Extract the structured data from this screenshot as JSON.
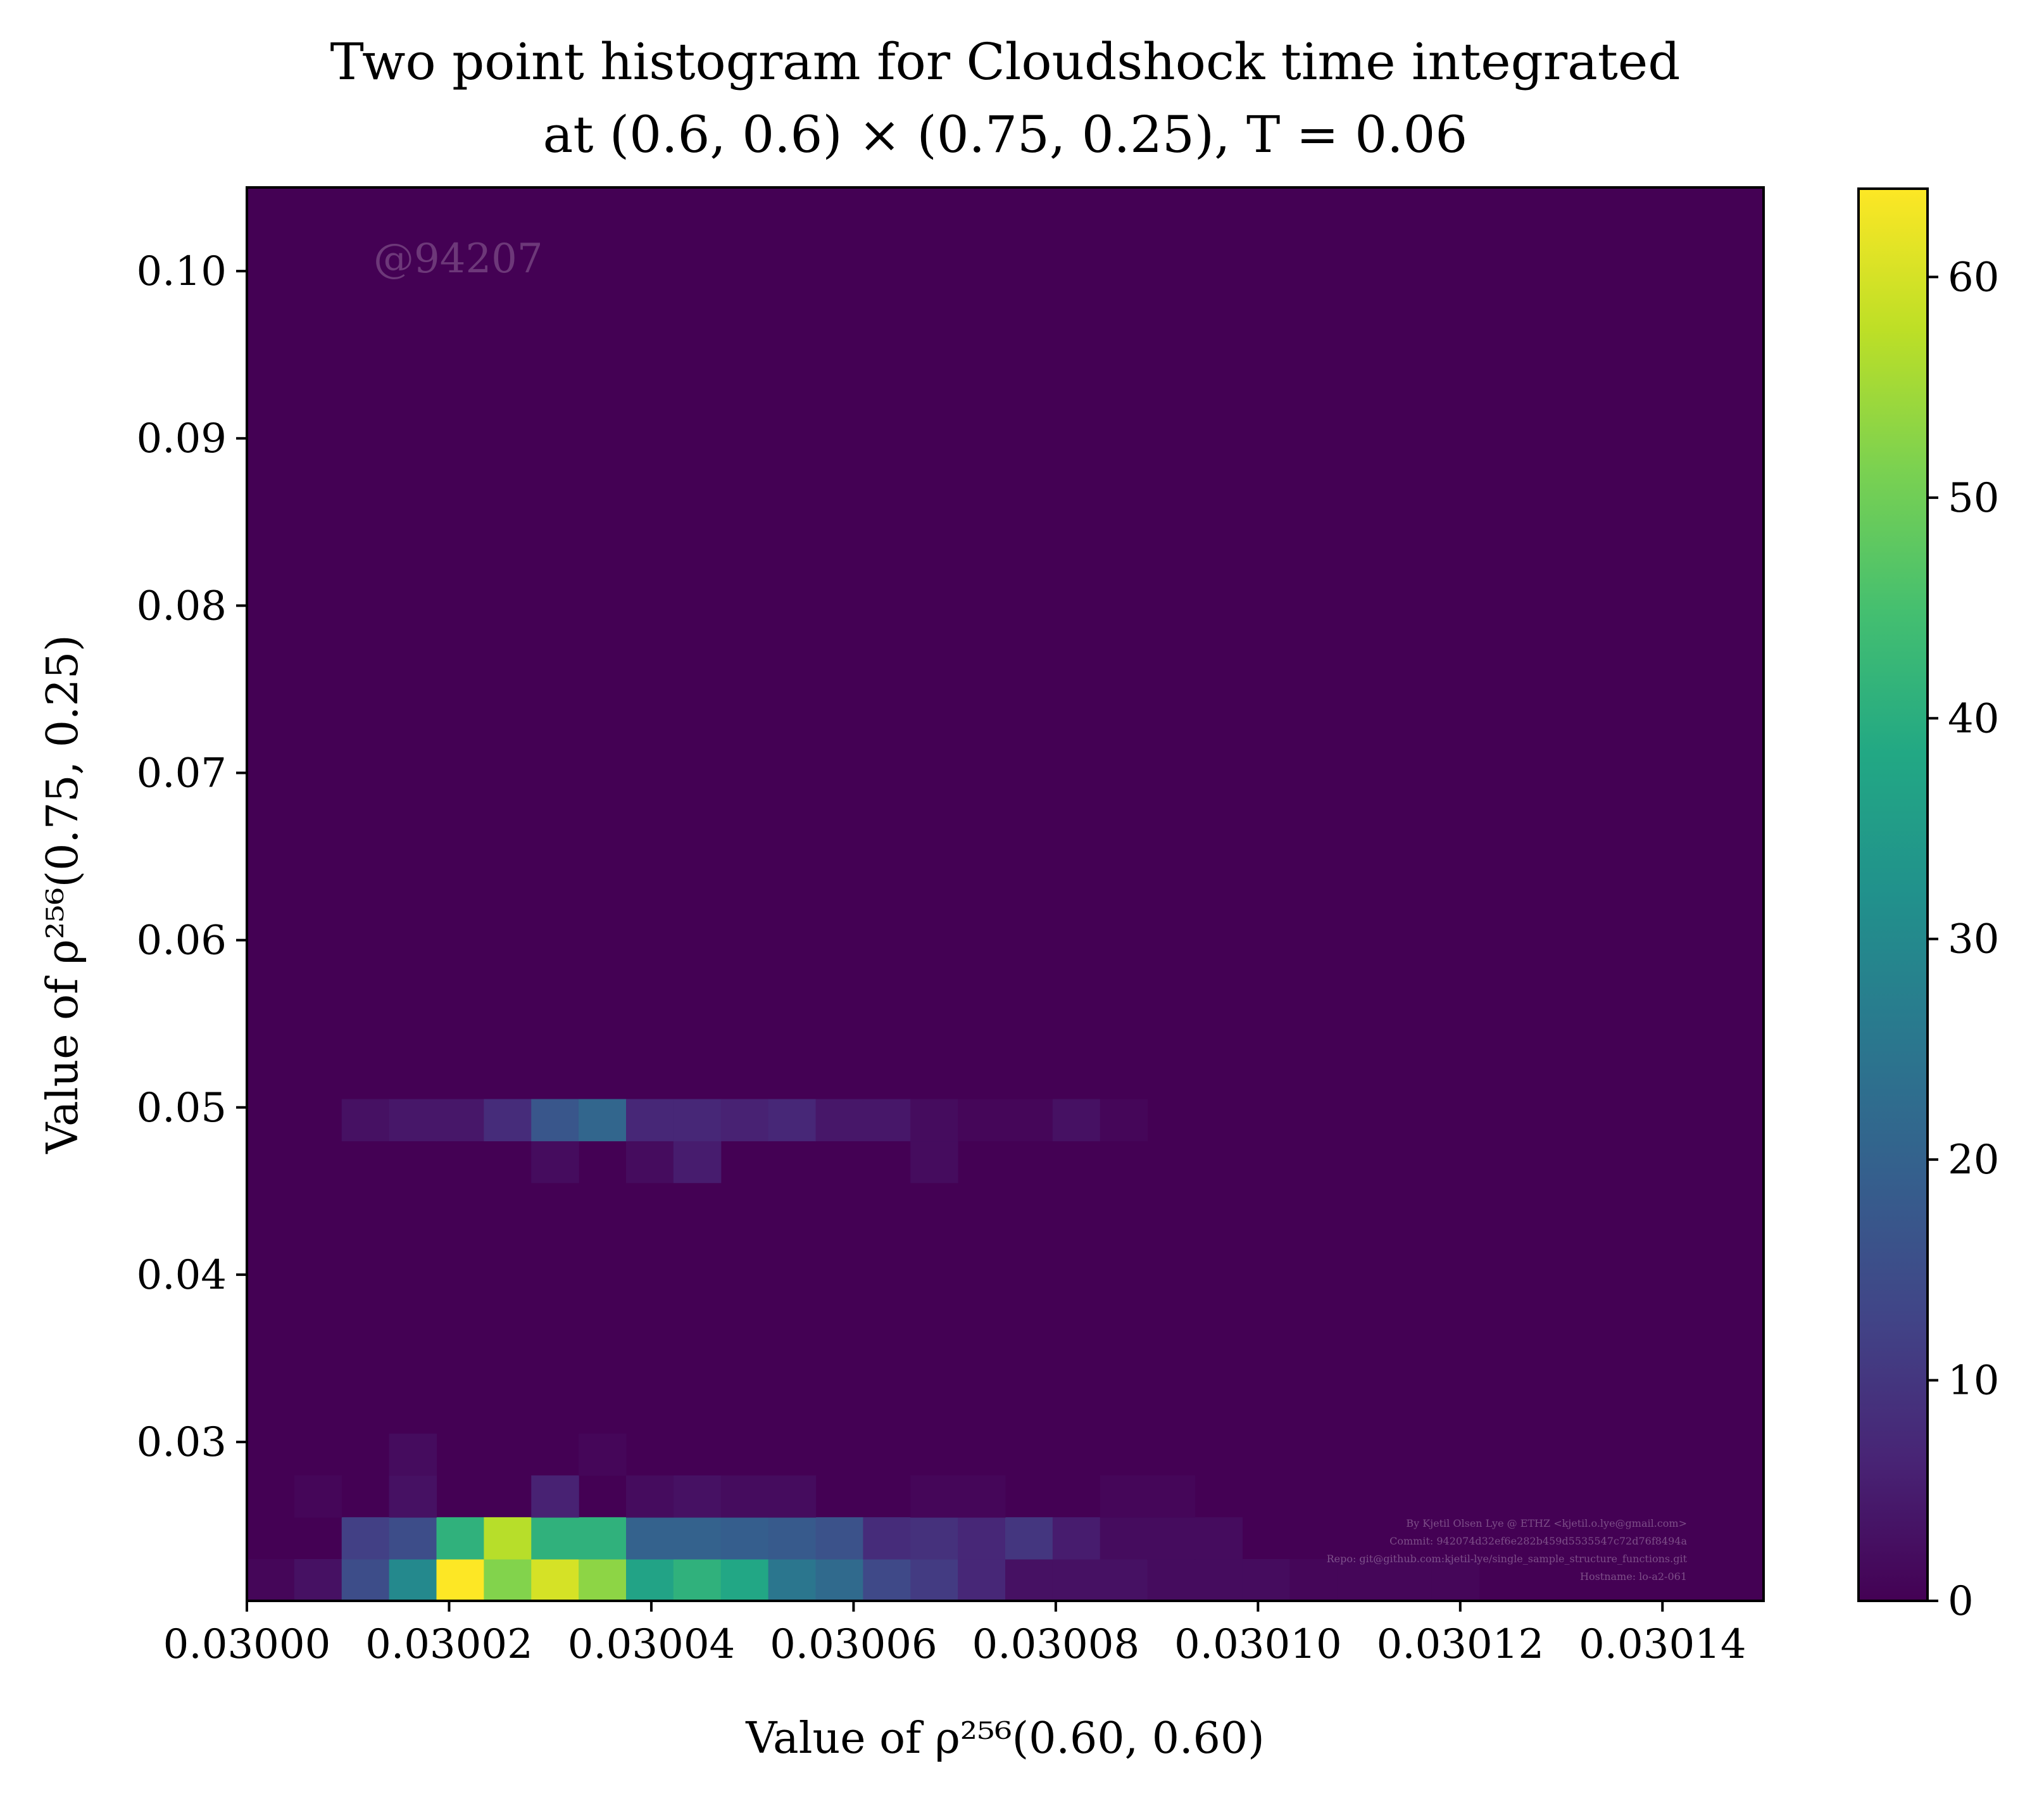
{
  "chart_data": {
    "type": "heatmap",
    "title_line1": "Two point histogram for Cloudshock time integrated",
    "title_line2": "at (0.6, 0.6) × (0.75, 0.25), T = 0.06",
    "xlabel": "Value of ρ²⁵⁶(0.60, 0.60)",
    "ylabel": "Value of ρ²⁵⁶(0.75, 0.25)",
    "xlim": [
      0.03,
      0.03015
    ],
    "ylim": [
      0.0205,
      0.105
    ],
    "x_ticks": [
      "0.03000",
      "0.03002",
      "0.03004",
      "0.03006",
      "0.03008",
      "0.03010",
      "0.03012",
      "0.03014"
    ],
    "y_ticks": [
      "0.03",
      "0.04",
      "0.05",
      "0.06",
      "0.07",
      "0.08",
      "0.09",
      "0.10"
    ],
    "colorbar": {
      "min": 0,
      "max": 64,
      "colormap": "viridis",
      "ticks": [
        "0",
        "10",
        "20",
        "30",
        "40",
        "50",
        "60"
      ]
    },
    "bins": {
      "x_edges_start": 0.03,
      "x_bin_width": 4.6875e-06,
      "y_edges_start": 0.0205,
      "y_bin_width": 0.0025
    },
    "nonzero_cells": [
      {
        "ix": 0,
        "iy": 0,
        "v": 1
      },
      {
        "ix": 1,
        "iy": 0,
        "v": 3
      },
      {
        "ix": 2,
        "iy": 0,
        "v": 15
      },
      {
        "ix": 3,
        "iy": 0,
        "v": 30
      },
      {
        "ix": 4,
        "iy": 0,
        "v": 64
      },
      {
        "ix": 5,
        "iy": 0,
        "v": 52
      },
      {
        "ix": 6,
        "iy": 0,
        "v": 60
      },
      {
        "ix": 7,
        "iy": 0,
        "v": 53
      },
      {
        "ix": 8,
        "iy": 0,
        "v": 37
      },
      {
        "ix": 9,
        "iy": 0,
        "v": 41
      },
      {
        "ix": 10,
        "iy": 0,
        "v": 38
      },
      {
        "ix": 11,
        "iy": 0,
        "v": 25
      },
      {
        "ix": 12,
        "iy": 0,
        "v": 22
      },
      {
        "ix": 13,
        "iy": 0,
        "v": 14
      },
      {
        "ix": 14,
        "iy": 0,
        "v": 11
      },
      {
        "ix": 15,
        "iy": 0,
        "v": 7
      },
      {
        "ix": 16,
        "iy": 0,
        "v": 3
      },
      {
        "ix": 17,
        "iy": 0,
        "v": 3
      },
      {
        "ix": 18,
        "iy": 0,
        "v": 3
      },
      {
        "ix": 19,
        "iy": 0,
        "v": 2
      },
      {
        "ix": 20,
        "iy": 0,
        "v": 2
      },
      {
        "ix": 21,
        "iy": 0,
        "v": 2
      },
      {
        "ix": 22,
        "iy": 0,
        "v": 1
      },
      {
        "ix": 23,
        "iy": 0,
        "v": 1
      },
      {
        "ix": 24,
        "iy": 0,
        "v": 1
      },
      {
        "ix": 25,
        "iy": 0,
        "v": 1
      },
      {
        "ix": 2,
        "iy": 1,
        "v": 12
      },
      {
        "ix": 3,
        "iy": 1,
        "v": 15
      },
      {
        "ix": 4,
        "iy": 1,
        "v": 41
      },
      {
        "ix": 5,
        "iy": 1,
        "v": 57
      },
      {
        "ix": 6,
        "iy": 1,
        "v": 41
      },
      {
        "ix": 7,
        "iy": 1,
        "v": 41
      },
      {
        "ix": 8,
        "iy": 1,
        "v": 20
      },
      {
        "ix": 9,
        "iy": 1,
        "v": 20
      },
      {
        "ix": 10,
        "iy": 1,
        "v": 19
      },
      {
        "ix": 11,
        "iy": 1,
        "v": 18
      },
      {
        "ix": 12,
        "iy": 1,
        "v": 16
      },
      {
        "ix": 13,
        "iy": 1,
        "v": 8
      },
      {
        "ix": 14,
        "iy": 1,
        "v": 9
      },
      {
        "ix": 15,
        "iy": 1,
        "v": 7
      },
      {
        "ix": 16,
        "iy": 1,
        "v": 10
      },
      {
        "ix": 17,
        "iy": 1,
        "v": 5
      },
      {
        "ix": 18,
        "iy": 1,
        "v": 2
      },
      {
        "ix": 19,
        "iy": 1,
        "v": 2
      },
      {
        "ix": 20,
        "iy": 1,
        "v": 2
      },
      {
        "ix": 1,
        "iy": 2,
        "v": 1
      },
      {
        "ix": 3,
        "iy": 2,
        "v": 3
      },
      {
        "ix": 6,
        "iy": 2,
        "v": 6
      },
      {
        "ix": 8,
        "iy": 2,
        "v": 2
      },
      {
        "ix": 9,
        "iy": 2,
        "v": 3
      },
      {
        "ix": 10,
        "iy": 2,
        "v": 2
      },
      {
        "ix": 11,
        "iy": 2,
        "v": 2
      },
      {
        "ix": 14,
        "iy": 2,
        "v": 1
      },
      {
        "ix": 15,
        "iy": 2,
        "v": 1
      },
      {
        "ix": 18,
        "iy": 2,
        "v": 1
      },
      {
        "ix": 19,
        "iy": 2,
        "v": 1
      },
      {
        "ix": 3,
        "iy": 3,
        "v": 2
      },
      {
        "ix": 7,
        "iy": 3,
        "v": 1
      },
      {
        "ix": 6,
        "iy": 10,
        "v": 2
      },
      {
        "ix": 8,
        "iy": 10,
        "v": 2
      },
      {
        "ix": 9,
        "iy": 10,
        "v": 5
      },
      {
        "ix": 14,
        "iy": 10,
        "v": 2
      },
      {
        "ix": 2,
        "iy": 11,
        "v": 3
      },
      {
        "ix": 3,
        "iy": 11,
        "v": 4
      },
      {
        "ix": 4,
        "iy": 11,
        "v": 4
      },
      {
        "ix": 5,
        "iy": 11,
        "v": 8
      },
      {
        "ix": 6,
        "iy": 11,
        "v": 17
      },
      {
        "ix": 7,
        "iy": 11,
        "v": 21
      },
      {
        "ix": 8,
        "iy": 11,
        "v": 7
      },
      {
        "ix": 9,
        "iy": 11,
        "v": 7
      },
      {
        "ix": 10,
        "iy": 11,
        "v": 6
      },
      {
        "ix": 11,
        "iy": 11,
        "v": 7
      },
      {
        "ix": 12,
        "iy": 11,
        "v": 4
      },
      {
        "ix": 13,
        "iy": 11,
        "v": 4
      },
      {
        "ix": 14,
        "iy": 11,
        "v": 2
      },
      {
        "ix": 15,
        "iy": 11,
        "v": 1
      },
      {
        "ix": 16,
        "iy": 11,
        "v": 1
      },
      {
        "ix": 17,
        "iy": 11,
        "v": 3
      },
      {
        "ix": 18,
        "iy": 11,
        "v": 1
      }
    ]
  },
  "watermark": "@94207",
  "credits": [
    "By Kjetil Olsen Lye @ ETHZ <kjetil.o.lye@gmail.com>",
    "Commit: 942074d32ef6e282b459d5535547c72d76f8494a",
    "Repo: git@github.com:kjetil-lye/single_sample_structure_functions.git",
    "Hostname: lo-a2-061"
  ]
}
